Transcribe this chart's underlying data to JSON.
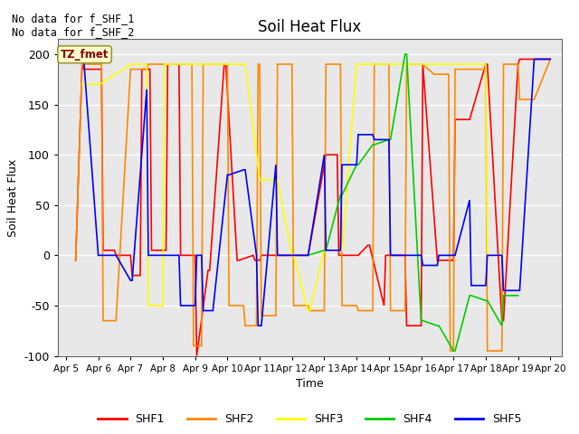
{
  "title": "Soil Heat Flux",
  "ylabel": "Soil Heat Flux",
  "xlabel": "Time",
  "ylim": [
    -100,
    215
  ],
  "annotation_text": "No data for f_SHF_1\nNo data for f_SHF_2",
  "legend_box_label": "TZ_fmet",
  "legend_box_color": "#ffffcc",
  "legend_box_edge": "#999933",
  "background_color": "#e8e8e8",
  "series": {
    "SHF1": {
      "color": "#ff0000",
      "data_x": [
        5.3,
        5.5,
        5.55,
        6.1,
        6.15,
        6.5,
        6.55,
        7.0,
        7.05,
        7.3,
        7.35,
        7.6,
        7.65,
        8.1,
        8.15,
        8.5,
        8.55,
        9.0,
        9.05,
        9.4,
        9.45,
        9.9,
        9.95,
        10.3,
        10.35,
        10.8,
        10.85,
        11.0,
        11.05,
        12.0,
        12.05,
        12.5,
        13.0,
        13.05,
        13.4,
        13.45,
        14.0,
        14.05,
        14.35,
        14.4,
        14.85,
        14.9,
        15.2,
        15.5,
        15.55,
        16.0,
        16.05,
        16.5,
        17.0,
        17.05,
        17.5,
        18.0,
        18.05,
        18.5,
        18.55,
        19.0,
        19.05,
        19.5,
        20.0
      ],
      "data_y": [
        -5,
        190,
        185,
        185,
        5,
        5,
        0,
        0,
        -20,
        -20,
        185,
        185,
        5,
        5,
        190,
        190,
        0,
        0,
        -100,
        -15,
        -15,
        190,
        190,
        -5,
        -5,
        0,
        -5,
        -5,
        0,
        0,
        0,
        0,
        90,
        100,
        100,
        0,
        0,
        0,
        10,
        10,
        -50,
        0,
        0,
        0,
        -70,
        -70,
        190,
        -5,
        -5,
        135,
        135,
        190,
        190,
        -65,
        -65,
        190,
        195,
        195,
        195
      ]
    },
    "SHF2": {
      "color": "#ff8800",
      "data_x": [
        5.3,
        5.5,
        5.55,
        6.1,
        6.15,
        6.5,
        6.55,
        7.0,
        7.05,
        7.5,
        7.55,
        8.1,
        8.15,
        8.9,
        8.95,
        9.2,
        9.25,
        9.5,
        9.55,
        10.0,
        10.05,
        10.5,
        10.55,
        10.9,
        10.95,
        11.0,
        11.05,
        11.5,
        11.55,
        12.0,
        12.05,
        12.5,
        12.55,
        13.0,
        13.05,
        13.5,
        13.55,
        14.0,
        14.05,
        14.5,
        14.55,
        15.0,
        15.05,
        15.5,
        15.55,
        16.0,
        16.05,
        16.4,
        16.85,
        16.9,
        17.0,
        17.05,
        17.5,
        18.0,
        18.05,
        18.5,
        18.55,
        19.0,
        19.05,
        19.5,
        20.0
      ],
      "data_y": [
        -5,
        190,
        190,
        190,
        -65,
        -65,
        -65,
        185,
        185,
        185,
        190,
        190,
        190,
        190,
        -90,
        -90,
        190,
        190,
        190,
        190,
        -50,
        -50,
        -70,
        -70,
        190,
        190,
        -60,
        -60,
        190,
        190,
        -50,
        -50,
        -55,
        -55,
        190,
        190,
        -50,
        -50,
        -55,
        -55,
        190,
        190,
        -55,
        -55,
        190,
        190,
        190,
        180,
        180,
        -95,
        -95,
        185,
        185,
        185,
        -95,
        -95,
        190,
        190,
        155,
        155,
        195
      ]
    },
    "SHF3": {
      "color": "#ffff00",
      "data_x": [
        5.5,
        5.55,
        6.0,
        6.05,
        7.0,
        7.05,
        7.5,
        7.55,
        8.0,
        8.05,
        8.5,
        8.55,
        9.0,
        9.05,
        9.5,
        9.55,
        10.0,
        10.05,
        10.5,
        10.55,
        11.0,
        11.05,
        11.5,
        11.55,
        12.0,
        12.05,
        12.5,
        12.55,
        13.0,
        13.05,
        13.5,
        13.55,
        14.0,
        14.05,
        14.5,
        14.55,
        15.5,
        15.55,
        16.0,
        16.05,
        17.0,
        17.05,
        17.5,
        17.55,
        18.0,
        18.05,
        18.5
      ],
      "data_y": [
        170,
        170,
        170,
        170,
        190,
        190,
        190,
        -50,
        -50,
        190,
        190,
        190,
        190,
        190,
        190,
        190,
        190,
        190,
        190,
        190,
        75,
        75,
        75,
        75,
        0,
        0,
        -55,
        -55,
        5,
        5,
        5,
        5,
        190,
        190,
        190,
        190,
        190,
        190,
        190,
        190,
        190,
        190,
        190,
        190,
        190,
        0,
        0
      ]
    },
    "SHF4": {
      "color": "#00cc00",
      "data_x": [
        12.5,
        13.0,
        13.05,
        13.5,
        13.55,
        14.0,
        14.05,
        14.5,
        14.55,
        15.0,
        15.05,
        15.5,
        15.55,
        16.0,
        16.05,
        16.5,
        16.55,
        17.0,
        17.05,
        17.5,
        17.55,
        18.0,
        18.05,
        18.5,
        18.55,
        19.0
      ],
      "data_y": [
        0,
        5,
        5,
        60,
        60,
        90,
        90,
        110,
        110,
        115,
        115,
        200,
        200,
        -65,
        -65,
        -70,
        -70,
        -95,
        -95,
        -40,
        -40,
        -45,
        -45,
        -70,
        -40,
        -40
      ]
    },
    "SHF5": {
      "color": "#0000ff",
      "data_x": [
        5.5,
        5.55,
        6.0,
        6.05,
        6.5,
        6.55,
        7.0,
        7.05,
        7.5,
        7.55,
        8.0,
        8.05,
        8.5,
        8.55,
        9.0,
        9.05,
        9.2,
        9.25,
        9.5,
        9.55,
        10.0,
        10.05,
        10.5,
        10.55,
        10.9,
        10.95,
        11.0,
        11.05,
        11.5,
        11.55,
        12.0,
        12.05,
        12.5,
        13.0,
        13.05,
        13.5,
        13.55,
        14.0,
        14.05,
        14.5,
        14.55,
        15.0,
        15.05,
        15.5,
        15.55,
        16.0,
        16.05,
        16.5,
        16.55,
        17.0,
        17.05,
        17.5,
        17.55,
        18.0,
        18.05,
        18.5,
        18.55,
        19.0,
        19.05,
        19.5,
        20.0
      ],
      "data_y": [
        195,
        195,
        0,
        0,
        0,
        0,
        -25,
        -25,
        165,
        0,
        0,
        0,
        0,
        -50,
        -50,
        0,
        0,
        -55,
        -55,
        -55,
        80,
        80,
        85,
        85,
        0,
        -70,
        -70,
        -70,
        90,
        0,
        0,
        0,
        0,
        100,
        5,
        5,
        90,
        90,
        120,
        120,
        115,
        115,
        0,
        0,
        0,
        0,
        -10,
        -10,
        0,
        0,
        0,
        55,
        -30,
        -30,
        0,
        0,
        -35,
        -35,
        -35,
        195,
        195
      ]
    }
  },
  "xtick_labels": [
    "Apr 5",
    "Apr 6",
    "Apr 7",
    "Apr 8",
    "Apr 9",
    "Apr 10",
    "Apr 11",
    "Apr 12",
    "Apr 13",
    "Apr 14",
    "Apr 15",
    "Apr 16",
    "Apr 17",
    "Apr 18",
    "Apr 19",
    "Apr 20"
  ],
  "xtick_positions": [
    5,
    6,
    7,
    8,
    9,
    10,
    11,
    12,
    13,
    14,
    15,
    16,
    17,
    18,
    19,
    20
  ],
  "ytick_labels": [
    "-100",
    "-50",
    "0",
    "50",
    "100",
    "150",
    "200"
  ],
  "ytick_values": [
    -100,
    -50,
    0,
    50,
    100,
    150,
    200
  ],
  "legend_entries": [
    "SHF1",
    "SHF2",
    "SHF3",
    "SHF4",
    "SHF5"
  ],
  "legend_colors": [
    "#ff0000",
    "#ff8800",
    "#ffff00",
    "#00cc00",
    "#0000ff"
  ]
}
